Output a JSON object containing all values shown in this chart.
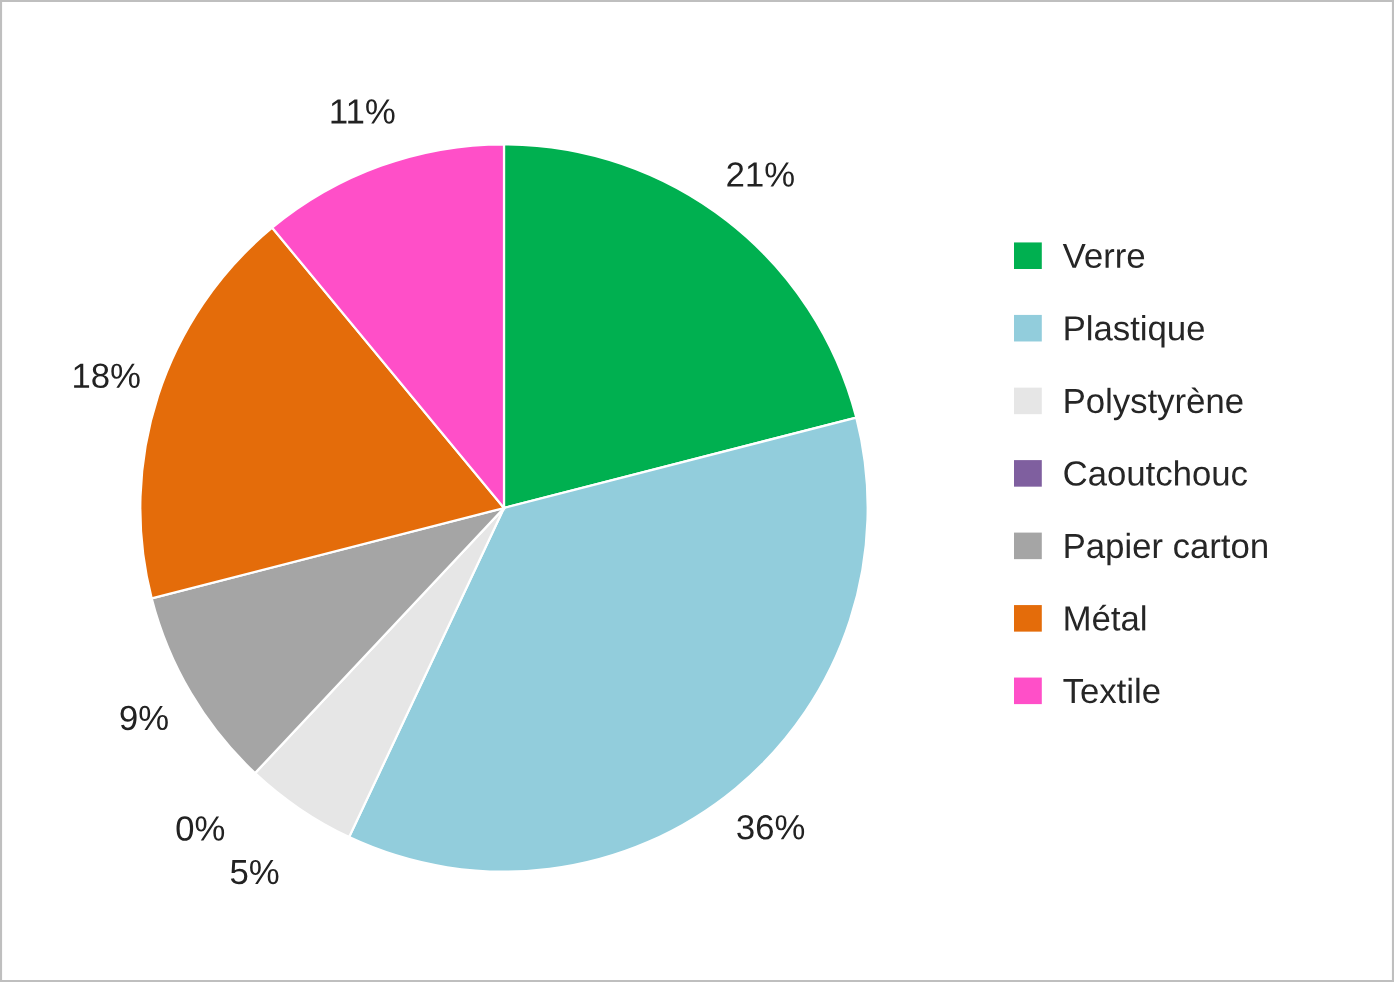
{
  "chart_data": {
    "type": "pie",
    "categories": [
      "Verre",
      "Plastique",
      "Polystyrène",
      "Caoutchouc",
      "Papier carton",
      "Métal",
      "Textile"
    ],
    "values": [
      21,
      36,
      5,
      0,
      9,
      18,
      11
    ],
    "value_labels": [
      "21%",
      "36%",
      "5%",
      "0%",
      "9%",
      "18%",
      "11%"
    ],
    "colors": [
      "#00b050",
      "#92cddc",
      "#e6e6e6",
      "#7f5f9f",
      "#a5a5a5",
      "#e46c0a",
      "#ff4fc8"
    ],
    "legend": "right"
  }
}
